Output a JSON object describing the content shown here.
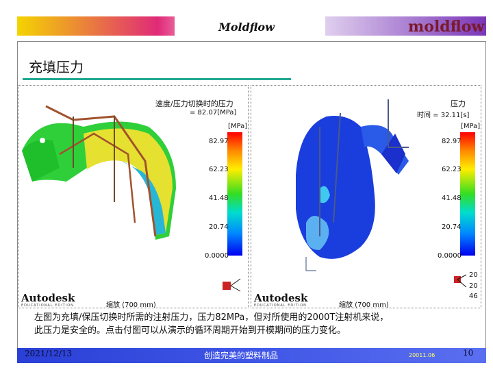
{
  "header": {
    "title": "Moldflow",
    "logo": "moldflow"
  },
  "slide": {
    "title": "充填压力"
  },
  "left_panel": {
    "title": "速度/压力切换时的压力",
    "subtitle": "= 82.07[MPa]",
    "unit": "[MPa]",
    "ticks": [
      "82.97",
      "62.23",
      "41.48",
      "20.74",
      "0.0000"
    ],
    "brand": "Autodesk",
    "brand_sub": "EDUCATIONAL EDITION",
    "scale": "缩放 (700 mm)"
  },
  "right_panel": {
    "title": "压力",
    "subtitle": "时间 = 32.11[s]",
    "unit": "[MPa]",
    "ticks": [
      "82.97",
      "62.23",
      "41.48",
      "20.74",
      "0.0000"
    ],
    "brand": "Autodesk",
    "brand_sub": "EDUCATIONAL EDITION",
    "scale": "缩放 (700 mm)",
    "axis_labels": [
      "20",
      "20",
      "46"
    ]
  },
  "caption": {
    "line1": "左图为充填/保压切换时所需的注射压力，压力82MPa，但对所使用的2000T注射机来说，",
    "line2": "此压力是安全的。点击付图可以从演示的循环周期开始到开模期间的压力变化。"
  },
  "footer": {
    "date": "2021/12/13",
    "text": "创造完美的塑料制品",
    "code": "20011.06",
    "page": "10"
  },
  "colors": {
    "accent_underline": "#1fa98f",
    "footer_bar": "#3f56e6"
  }
}
